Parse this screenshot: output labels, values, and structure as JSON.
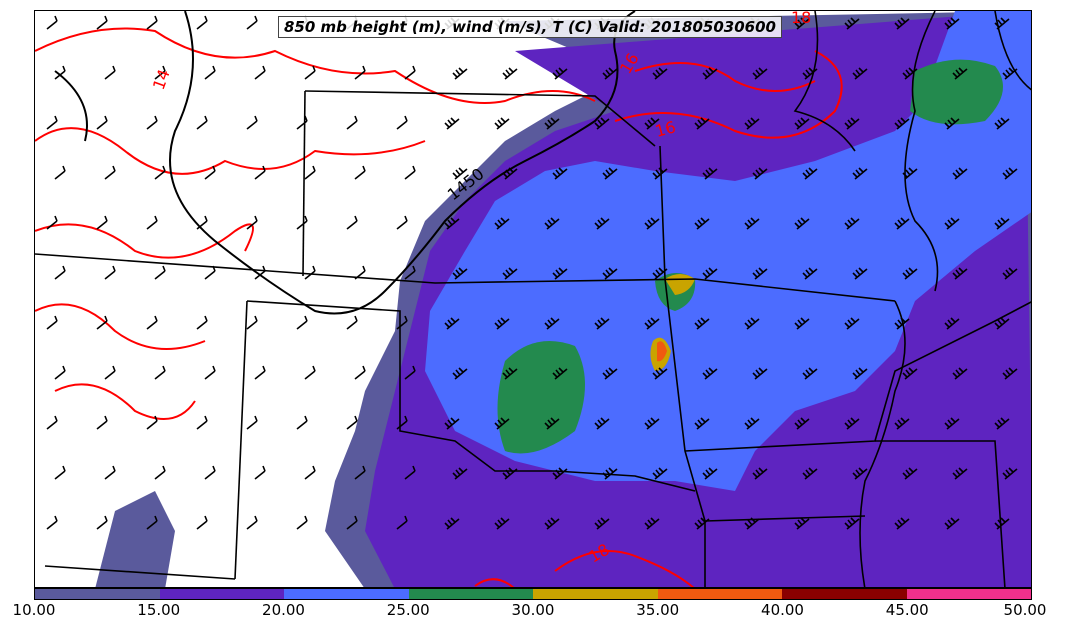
{
  "title": "850 mb height (m), wind (m/s), T (C) Valid: 201805030600",
  "colorbar": {
    "ticks": [
      "10.00",
      "15.00",
      "20.00",
      "25.00",
      "30.00",
      "35.00",
      "40.00",
      "45.00",
      "50.00"
    ],
    "colors": [
      "#5a5a9c",
      "#5e24c0",
      "#4c6cff",
      "#238a4e",
      "#c9a400",
      "#f05a10",
      "#8a0000",
      "#f0308c"
    ]
  },
  "contour_labels": {
    "height": [
      "1450"
    ],
    "temperature": [
      "14",
      "16",
      "16",
      "18",
      "18"
    ]
  },
  "colors": {
    "height_contour": "#000000",
    "temperature_contour": "#ff0000",
    "wind_barb": "#000000"
  }
}
